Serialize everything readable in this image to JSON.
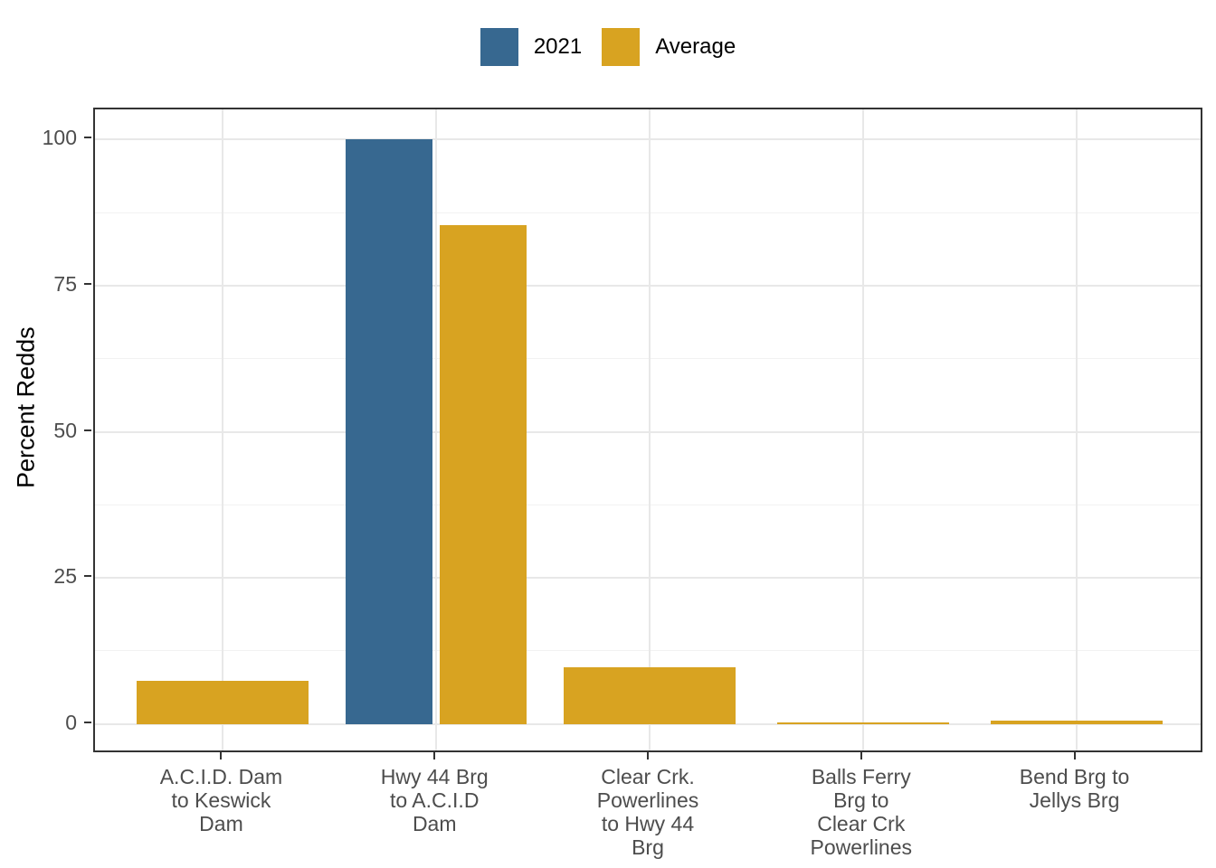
{
  "chart_data": {
    "type": "bar",
    "title": "",
    "xlabel": "",
    "ylabel": "Percent Redds",
    "ylim": [
      0,
      100
    ],
    "y_expansion": 5.15,
    "yticks": [
      0,
      25,
      50,
      75,
      100
    ],
    "yticks_minor": [
      12.5,
      37.5,
      62.5,
      87.5
    ],
    "grid": "on",
    "legend_position": "top-center",
    "categories": [
      "A.C.I.D. Dam\nto Keswick\nDam",
      "Hwy 44 Brg\nto A.C.I.D\nDam",
      "Clear Crk.\nPowerlines\nto Hwy 44\nBrg",
      "Balls Ferry\nBrg to\nClear Crk\nPowerlines",
      "Bend Brg to\nJellys Brg"
    ],
    "series": [
      {
        "name": "2021",
        "color": "#376890",
        "values": [
          null,
          100,
          null,
          null,
          null
        ]
      },
      {
        "name": "Average",
        "color": "#D8A321",
        "values": [
          7.4,
          85.4,
          9.7,
          0.2,
          0.6
        ]
      }
    ]
  },
  "colors": {
    "panel_border": "#333333",
    "grid_major": "#E8E8E8",
    "grid_minor": "#F2F2F2",
    "tick_label": "#4D4D4D",
    "axis_title": "#000000"
  }
}
